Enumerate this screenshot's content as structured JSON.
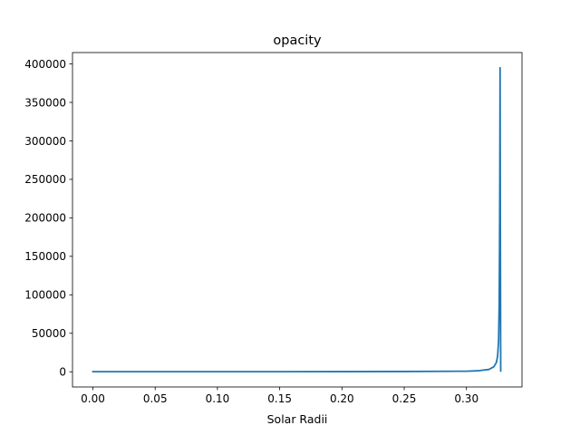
{
  "chart_data": {
    "type": "line",
    "title": "opacity",
    "xlabel": "Solar Radii",
    "ylabel": "",
    "xlim": [
      -0.0164,
      0.3446
    ],
    "ylim": [
      -19750,
      414750
    ],
    "x_ticks": [
      0.0,
      0.05,
      0.1,
      0.15,
      0.2,
      0.25,
      0.3
    ],
    "x_tick_labels": [
      "0.00",
      "0.05",
      "0.10",
      "0.15",
      "0.20",
      "0.25",
      "0.30"
    ],
    "y_ticks": [
      0,
      50000,
      100000,
      150000,
      200000,
      250000,
      300000,
      350000,
      400000
    ],
    "y_tick_labels": [
      "0",
      "50000",
      "100000",
      "150000",
      "200000",
      "250000",
      "300000",
      "350000",
      "400000"
    ],
    "grid": false,
    "legend": "none",
    "series": [
      {
        "color": "#1f77b4",
        "x": [
          0.0,
          0.05,
          0.1,
          0.15,
          0.2,
          0.25,
          0.3,
          0.31,
          0.318,
          0.322,
          0.324,
          0.325,
          0.3258,
          0.3263,
          0.3266,
          0.3268,
          0.327,
          0.3272,
          0.3275
        ],
        "y": [
          80,
          90,
          110,
          140,
          200,
          320,
          700,
          1400,
          3000,
          6500,
          12000,
          20000,
          40000,
          90000,
          170000,
          260000,
          395000,
          200000,
          1000
        ]
      }
    ]
  }
}
